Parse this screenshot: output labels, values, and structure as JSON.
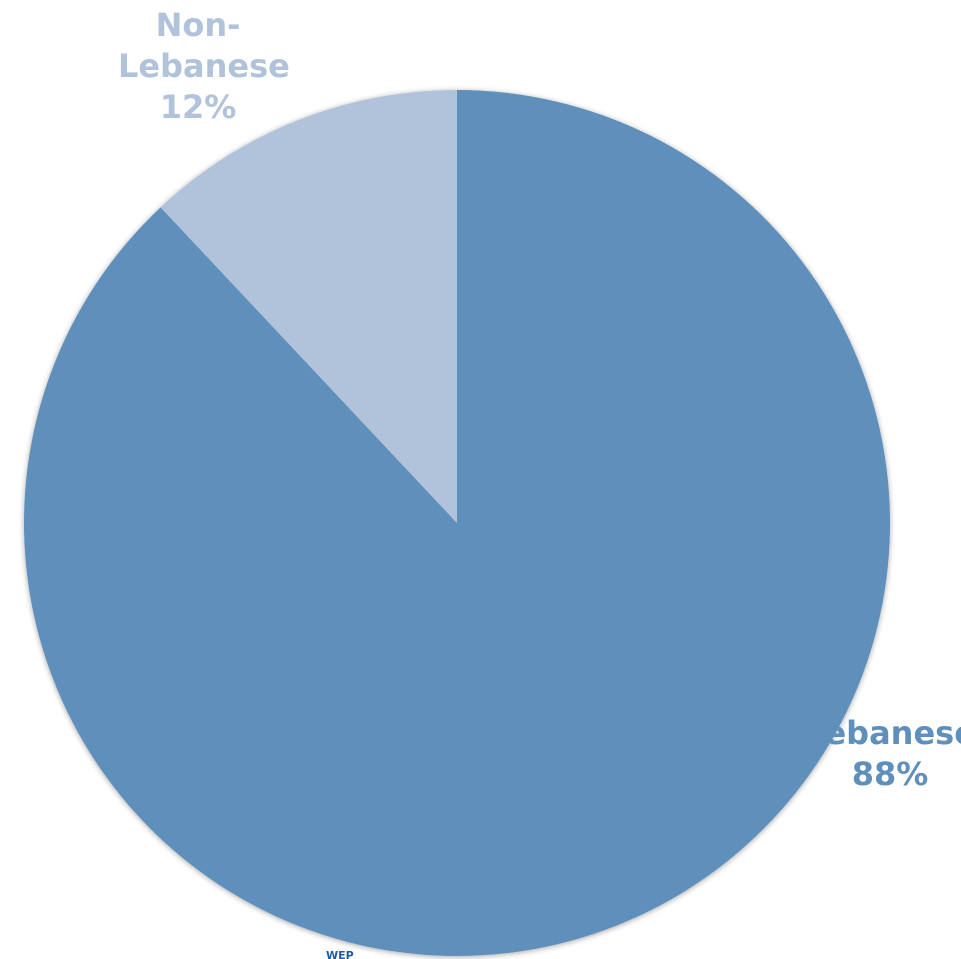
{
  "chart_data": {
    "type": "pie",
    "slices": [
      {
        "name": "Lebanese",
        "value": 88,
        "label": "88%",
        "color": "#5f8fbb"
      },
      {
        "name": "Non-Lebanese",
        "value": 12,
        "label": "12%",
        "color": "#b0c3da"
      }
    ],
    "labels": {
      "non_lebanese_line1": "Non-",
      "non_lebanese_line2": "Lebanese",
      "non_lebanese_pct": "12%",
      "lebanese_name": "Lebanese",
      "lebanese_pct": "88%"
    }
  },
  "footer_fragment": "WEP",
  "colors": {
    "lebanese": "#5f8fbb",
    "non_lebanese": "#b0c3da",
    "footer": "#1f5aa6"
  }
}
